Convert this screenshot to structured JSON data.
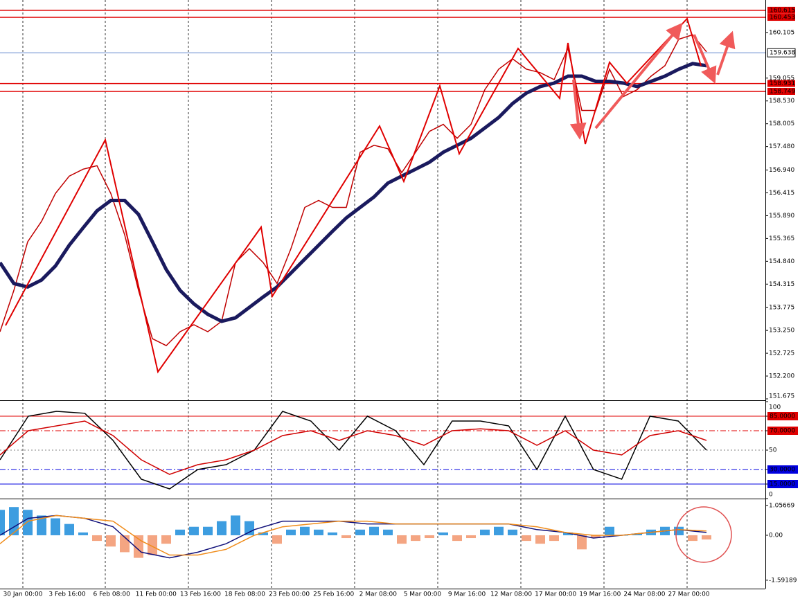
{
  "time_axis": [
    "30 Jan 00:00",
    "3 Feb 16:00",
    "6 Feb 08:00",
    "11 Feb 00:00",
    "13 Feb 16:00",
    "18 Feb 08:00",
    "23 Feb 00:00",
    "25 Feb 16:00",
    "2 Mar 08:00",
    "5 Mar 00:00",
    "9 Mar 16:00",
    "12 Mar 08:00",
    "17 Mar 00:00",
    "19 Mar 16:00",
    "24 Mar 08:00",
    "27 Mar 00:00"
  ],
  "chart_data": [
    {
      "type": "line",
      "series": [
        {
          "color": "#c00000",
          "values": [
            153.22,
            154.17,
            155.29,
            155.76,
            156.4,
            156.8,
            156.96,
            157.04,
            156.4,
            155.45,
            154.17,
            153.06,
            152.9,
            153.22,
            153.38,
            153.22,
            153.46,
            154.81,
            155.13,
            154.81,
            154.33,
            155.13,
            156.08,
            156.24,
            156.08,
            156.08,
            157.35,
            157.51,
            157.43,
            156.88,
            157.35,
            157.83,
            157.99,
            157.67,
            157.99,
            158.79,
            159.26,
            159.5,
            159.26,
            159.18,
            159.02,
            159.74,
            158.31,
            158.31,
            159.26,
            158.63,
            158.79,
            159.1,
            159.34,
            159.95,
            160.05,
            159.66
          ]
        },
        {
          "color": "#1a1a5e",
          "values": [
            154.81,
            154.33,
            154.25,
            154.41,
            154.73,
            155.21,
            155.61,
            156.0,
            156.24,
            156.24,
            155.92,
            155.29,
            154.65,
            154.17,
            153.86,
            153.62,
            153.46,
            153.54,
            153.78,
            154.02,
            154.25,
            154.57,
            154.89,
            155.21,
            155.53,
            155.84,
            156.08,
            156.32,
            156.64,
            156.8,
            156.96,
            157.12,
            157.35,
            157.51,
            157.67,
            157.91,
            158.15,
            158.47,
            158.71,
            158.86,
            158.94,
            159.1,
            159.1,
            158.98,
            158.98,
            158.94,
            158.86,
            158.98,
            159.1,
            159.26,
            159.39,
            159.34
          ]
        }
      ],
      "ylim": [
        151.643,
        160.852
      ],
      "yticks": [
        160.105,
        159.055,
        {
          "value": 158.53,
          "label": "158.530"
        },
        158.005,
        {
          "value": 157.48,
          "label": "157.480"
        },
        {
          "value": 156.94,
          "label": "156.940"
        },
        156.415,
        {
          "value": 155.89,
          "label": "155.890"
        },
        155.365,
        {
          "value": 154.84,
          "label": "154.840"
        },
        154.315,
        153.775,
        {
          "value": 153.25,
          "label": "153.250"
        },
        152.725,
        {
          "value": 152.2,
          "label": "152.200"
        },
        151.675
      ],
      "levels": [
        {
          "value": 160.615,
          "color": "#e00000"
        },
        {
          "value": 160.453,
          "color": "#e00000"
        },
        {
          "value": 158.931,
          "color": "#e00000"
        },
        {
          "value": 158.749,
          "color": "#e00000"
        }
      ],
      "current": {
        "value": 159.638,
        "color": "#4a78c8"
      }
    },
    {
      "type": "line",
      "series": [
        {
          "color": "#000000",
          "values": [
            40,
            85,
            90,
            88,
            60,
            20,
            10,
            30,
            35,
            50,
            90,
            80,
            50,
            85,
            70,
            35,
            80,
            80,
            75,
            30,
            85,
            30,
            20,
            85,
            80,
            50
          ]
        },
        {
          "color": "#d00000",
          "values": [
            45,
            70,
            75,
            80,
            65,
            40,
            25,
            35,
            40,
            50,
            65,
            70,
            60,
            70,
            65,
            55,
            70,
            72,
            70,
            55,
            70,
            50,
            45,
            65,
            70,
            60
          ]
        }
      ],
      "ylim": [
        0,
        100
      ],
      "yticks": [
        100,
        {
          "value": 85,
          "label": "85.0000"
        },
        {
          "value": 70,
          "label": "70.0000"
        },
        50,
        {
          "value": 30,
          "label": "30.0000"
        },
        {
          "value": 15,
          "label": "15.0000"
        },
        0
      ],
      "tick_colors": [
        null,
        "#e00000",
        "#e00000",
        "#808080",
        "#0000e0",
        "#0000e0",
        null
      ]
    },
    {
      "type": "macd",
      "values": [
        0.9,
        1.0,
        0.9,
        0.7,
        0.6,
        0.4,
        0.1,
        -0.2,
        -0.4,
        -0.6,
        -0.8,
        -0.7,
        -0.3,
        0.2,
        0.3,
        0.3,
        0.5,
        0.7,
        0.5,
        0.1,
        -0.3,
        0.2,
        0.3,
        0.2,
        0.1,
        -0.1,
        0.2,
        0.3,
        0.2,
        -0.3,
        -0.2,
        -0.1,
        0.1,
        -0.2,
        -0.1,
        0.2,
        0.3,
        0.2,
        -0.2,
        -0.3,
        -0.2,
        0.1,
        -0.5,
        -0.1,
        0.3,
        0.0,
        0.05,
        0.2,
        0.3,
        0.3,
        -0.2,
        -0.15
      ],
      "positive_color": "#3d9de0",
      "negative_color": "#f4a582",
      "series": [
        {
          "color": "#10107a",
          "values": [
            0.0,
            0.6,
            0.7,
            0.6,
            0.3,
            -0.6,
            -0.8,
            -0.6,
            -0.3,
            0.2,
            0.5,
            0.5,
            0.5,
            0.4,
            0.4,
            0.4,
            0.4,
            0.4,
            0.4,
            0.2,
            0.1,
            -0.1,
            0.0,
            0.1,
            0.2,
            0.1
          ]
        },
        {
          "color": "#f08c1a",
          "values": [
            -0.3,
            0.5,
            0.7,
            0.6,
            0.5,
            -0.2,
            -0.7,
            -0.7,
            -0.5,
            0.0,
            0.3,
            0.4,
            0.5,
            0.5,
            0.4,
            0.4,
            0.4,
            0.4,
            0.4,
            0.3,
            0.1,
            0.0,
            0.0,
            0.1,
            0.2,
            0.15
          ]
        }
      ],
      "ylim": [
        -1.89,
        1.25
      ],
      "yticks": [
        1.05669,
        {
          "value": 0,
          "label": "0.00"
        },
        -1.59189
      ]
    }
  ]
}
